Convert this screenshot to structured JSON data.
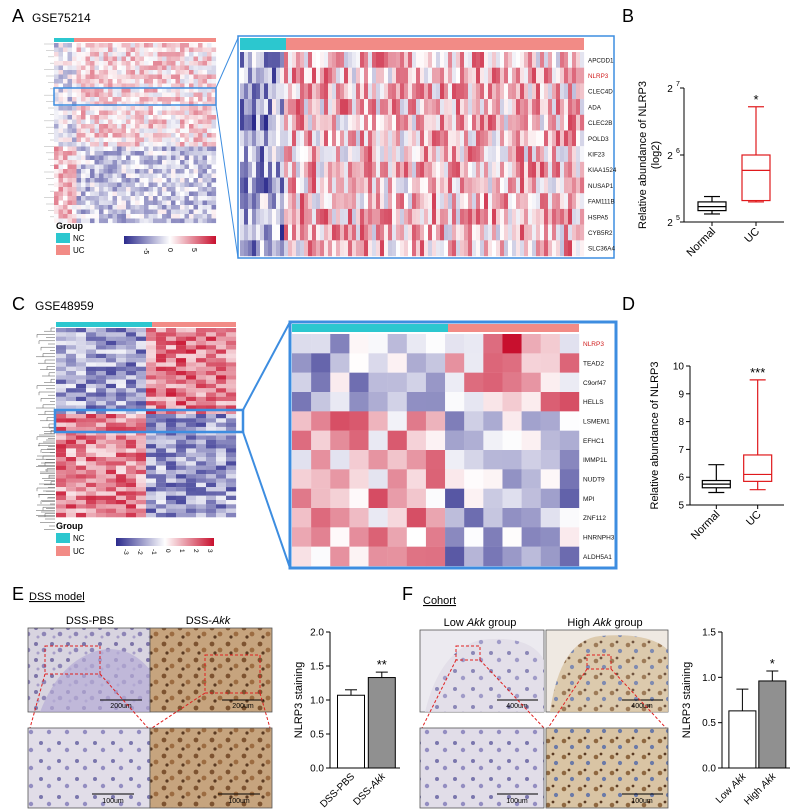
{
  "panels": {
    "A": {
      "letter": "A",
      "dataset": "GSE75214",
      "genes": [
        "APCDD1",
        "NLRP3",
        "CLEC4D",
        "ADA",
        "CLEC2B",
        "POLD3",
        "KIF23",
        "KIAA1524",
        "NUSAP1",
        "FAM111B",
        "HSPA5",
        "CYB5R2",
        "SLC36A4"
      ],
      "highlight_gene": "NLRP3",
      "legend": {
        "title": "Group",
        "items": [
          "NC",
          "UC"
        ]
      },
      "scale_ticks": [
        "-5",
        "0",
        "5"
      ]
    },
    "C": {
      "letter": "C",
      "dataset": "GSE48959",
      "genes": [
        "NLRP3",
        "TEAD2",
        "C9orf47",
        "HELLS",
        "LSMEM1",
        "EFHC1",
        "IMMP1L",
        "NUDT9",
        "MPI",
        "ZNF112",
        "HNRNPH3",
        "ALDH5A1"
      ],
      "highlight_gene": "NLRP3",
      "legend": {
        "title": "Group",
        "items": [
          "NC",
          "UC"
        ]
      },
      "scale_ticks": [
        "-3",
        "-2",
        "-1",
        "0",
        "1",
        "2",
        "3"
      ]
    },
    "E": {
      "letter": "E",
      "title": "DSS model",
      "img_labels": [
        "DSS-PBS",
        "DSS-"
      ],
      "img_label_italic": "Akk",
      "scale_bars": [
        "200um",
        "200um",
        "100um",
        "100um"
      ]
    },
    "F": {
      "letter": "F",
      "title": "Cohort",
      "img_label_pre": [
        "Low ",
        "High "
      ],
      "img_label_italic": "Akk",
      "img_label_post": " group",
      "scale_bars": [
        "400um",
        "400um",
        "100um",
        "100um"
      ]
    }
  },
  "colors": {
    "nc": "#2cc7cf",
    "uc": "#f28b86",
    "heat_low": "#2b2a8c",
    "heat_high": "#c8102e",
    "box_normal": "#000000",
    "box_uc": "#e0191c",
    "bar_gray": "#909090",
    "zoom_blue": "#3d8de0"
  },
  "chart_data": [
    {
      "id": "B",
      "letter": "B",
      "type": "box",
      "categories": [
        "Normal",
        "UC"
      ],
      "ylabel": "Relative abundance of NLRP3 (log2)",
      "yscale": "log2",
      "yticks": [
        5,
        6,
        7
      ],
      "ytick_labels": [
        "2",
        "2",
        "2"
      ],
      "ytick_exps": [
        "5",
        "6",
        "7"
      ],
      "series": [
        {
          "values_min": [
            5.12,
            5.3
          ],
          "values_q1": [
            5.17,
            5.32
          ],
          "values_median": [
            5.23,
            5.77
          ],
          "values_q3": [
            5.3,
            6.0
          ],
          "values_max": [
            5.38,
            6.72
          ]
        }
      ],
      "significance": [
        "",
        "*"
      ]
    },
    {
      "id": "D",
      "letter": "D",
      "type": "box",
      "categories": [
        "Normal",
        "UC"
      ],
      "ylabel": "Relative abundance of NLRP3",
      "ylim": [
        5,
        10
      ],
      "yticks": [
        "5",
        "6",
        "7",
        "8",
        "9",
        "10"
      ],
      "series": [
        {
          "values_min": [
            5.45,
            5.55
          ],
          "values_q1": [
            5.62,
            5.85
          ],
          "values_median": [
            5.75,
            6.1
          ],
          "values_q3": [
            5.88,
            6.8
          ],
          "values_max": [
            6.45,
            9.5
          ]
        }
      ],
      "significance": [
        "",
        "***"
      ]
    },
    {
      "id": "E-bar",
      "type": "bar",
      "categories": [
        "DSS-PBS",
        "DSS-Akk"
      ],
      "cat_pre": [
        "DSS-PBS",
        "DSS-"
      ],
      "cat_italic": [
        "",
        "Akk"
      ],
      "values": [
        1.07,
        1.33
      ],
      "errors": [
        0.08,
        0.08
      ],
      "ylabel": "NLRP3 staining",
      "ylim": [
        0,
        2.0
      ],
      "yticks": [
        "0.0",
        "0.5",
        "1.0",
        "1.5",
        "2.0"
      ],
      "significance": [
        "",
        "**"
      ]
    },
    {
      "id": "F-bar",
      "type": "bar",
      "categories": [
        "Low Akk",
        "High Akk"
      ],
      "cat_pre": [
        "Low ",
        "High "
      ],
      "cat_italic": [
        "Akk",
        "Akk"
      ],
      "values": [
        0.63,
        0.96
      ],
      "errors": [
        0.24,
        0.11
      ],
      "ylabel": "NLRP3 staining",
      "ylim": [
        0,
        1.5
      ],
      "yticks": [
        "0.0",
        "0.5",
        "1.0",
        "1.5"
      ],
      "significance": [
        "",
        "*"
      ]
    }
  ]
}
